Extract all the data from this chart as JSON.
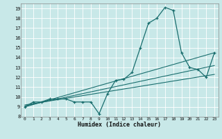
{
  "title": "",
  "xlabel": "Humidex (Indice chaleur)",
  "background_color": "#c8e8e8",
  "grid_color": "#ffffff",
  "line_color": "#1a6e6e",
  "xlim": [
    -0.5,
    23.5
  ],
  "ylim": [
    8,
    19.5
  ],
  "xticks": [
    0,
    1,
    2,
    3,
    4,
    5,
    6,
    7,
    8,
    9,
    10,
    11,
    12,
    13,
    14,
    15,
    16,
    17,
    18,
    19,
    20,
    21,
    22,
    23
  ],
  "yticks": [
    8,
    9,
    10,
    11,
    12,
    13,
    14,
    15,
    16,
    17,
    18,
    19
  ],
  "line1_x": [
    0,
    1,
    2,
    3,
    4,
    5,
    6,
    7,
    8,
    9,
    10,
    11,
    12,
    13,
    14,
    15,
    16,
    17,
    18,
    19,
    20,
    21,
    22,
    23
  ],
  "line1_y": [
    9.0,
    9.5,
    9.5,
    9.8,
    9.8,
    9.8,
    9.5,
    9.5,
    9.5,
    8.3,
    10.3,
    11.7,
    11.8,
    12.5,
    15.0,
    17.5,
    18.0,
    19.1,
    18.8,
    14.5,
    13.0,
    12.8,
    12.0,
    14.5
  ],
  "line2_y_start": 9.0,
  "line2_y_end": 14.5,
  "line3_y_start": 9.1,
  "line3_y_end": 13.2,
  "line4_y_start": 9.2,
  "line4_y_end": 12.3,
  "x_start": 0,
  "x_end": 23
}
